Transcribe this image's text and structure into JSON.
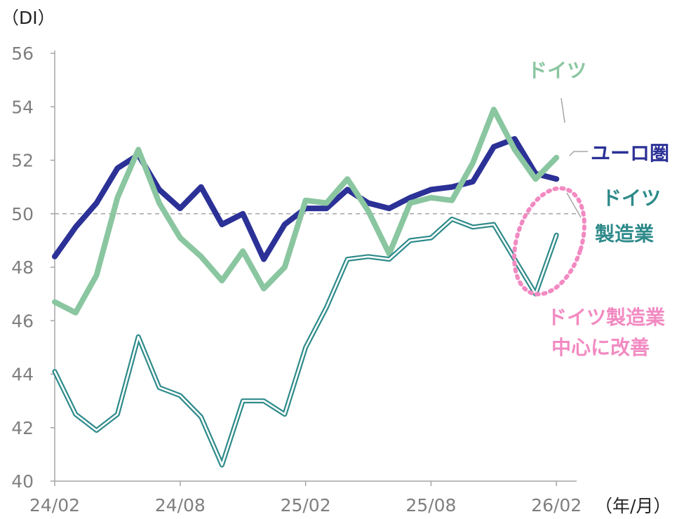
{
  "chart_data": {
    "type": "line",
    "y_unit": "（DI）",
    "x_unit": "（年/月）",
    "ylim": [
      40,
      56
    ],
    "y_ticks": [
      "56",
      "54",
      "52",
      "50",
      "48",
      "46",
      "44",
      "42",
      "40"
    ],
    "x_tick_labels": [
      "24/02",
      "24/08",
      "25/02",
      "25/08",
      "26/02"
    ],
    "x": [
      "24/02",
      "24/03",
      "24/04",
      "24/05",
      "24/06",
      "24/07",
      "24/08",
      "24/09",
      "24/10",
      "24/11",
      "24/12",
      "25/01",
      "25/02",
      "25/03",
      "25/04",
      "25/05",
      "25/06",
      "25/07",
      "25/08",
      "25/09",
      "25/10",
      "25/11",
      "25/12",
      "26/01",
      "26/02"
    ],
    "reference_line": 50,
    "series": [
      {
        "name": "ユーロ圏",
        "color": "#2b3196",
        "values": [
          48.4,
          49.5,
          50.4,
          51.7,
          52.2,
          50.9,
          50.2,
          51.0,
          49.6,
          50.0,
          48.3,
          49.6,
          50.2,
          50.2,
          50.9,
          50.4,
          50.2,
          50.6,
          50.9,
          51.0,
          51.2,
          52.5,
          52.8,
          51.5,
          51.3
        ]
      },
      {
        "name": "ドイツ",
        "color": "#8ac6a0",
        "values": [
          46.7,
          46.3,
          47.7,
          50.6,
          52.4,
          50.4,
          49.1,
          48.4,
          47.5,
          48.6,
          47.2,
          48.0,
          50.5,
          50.4,
          51.3,
          50.1,
          48.5,
          50.4,
          50.6,
          50.5,
          51.9,
          53.9,
          52.4,
          51.3,
          52.1
        ]
      },
      {
        "name": "ドイツ製造業",
        "color": "#2e8a8a",
        "values": [
          44.1,
          42.5,
          41.9,
          42.5,
          45.4,
          43.5,
          43.2,
          42.4,
          40.6,
          43.0,
          43.0,
          42.5,
          45.0,
          46.5,
          48.3,
          48.4,
          48.3,
          49.0,
          49.1,
          49.8,
          49.5,
          49.6,
          48.3,
          47.0,
          49.2
        ]
      }
    ],
    "labels": {
      "euro": "ユーロ圏",
      "germany": "ドイツ",
      "germany_mfg_line1": "ドイツ",
      "germany_mfg_line2": "製造業",
      "annotation_line1": "ドイツ製造業",
      "annotation_line2": "中心に改善"
    },
    "annotation_color": "#f28ac2",
    "axis_color": "#a6a6a6",
    "reference_color": "#a6a6a6"
  }
}
